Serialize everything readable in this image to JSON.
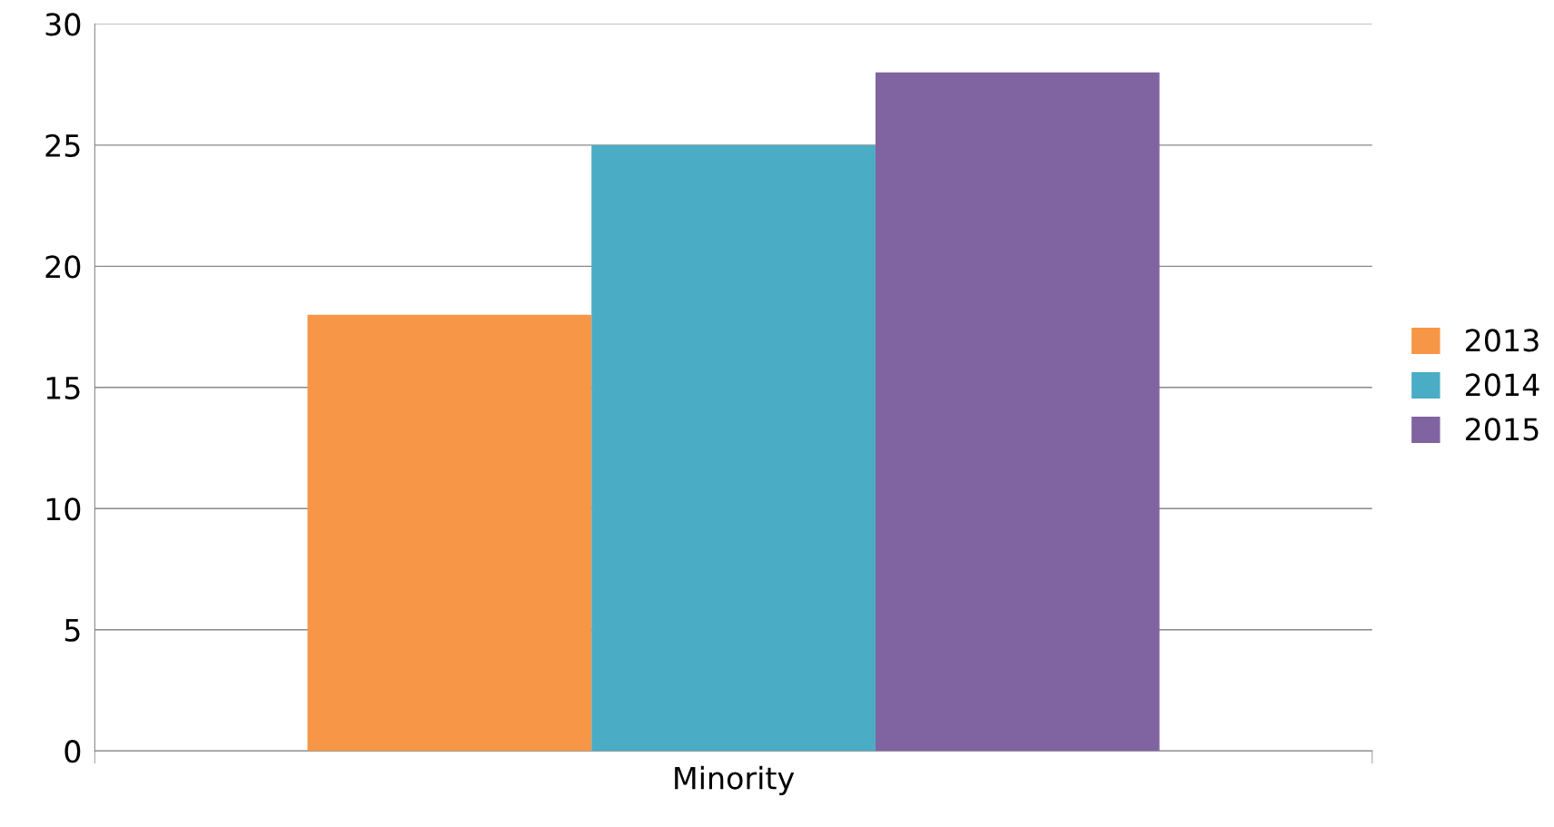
{
  "chart_data": {
    "type": "bar",
    "categories": [
      "Minority"
    ],
    "series": [
      {
        "name": "2013",
        "color": "#f79646",
        "values": [
          18
        ]
      },
      {
        "name": "2014",
        "color": "#4bacc6",
        "values": [
          25
        ]
      },
      {
        "name": "2015",
        "color": "#8064a2",
        "values": [
          28
        ]
      }
    ],
    "ylim": [
      0,
      30
    ],
    "yticks": [
      0,
      5,
      10,
      15,
      20,
      25,
      30
    ],
    "grid": "y",
    "legend": "right"
  }
}
